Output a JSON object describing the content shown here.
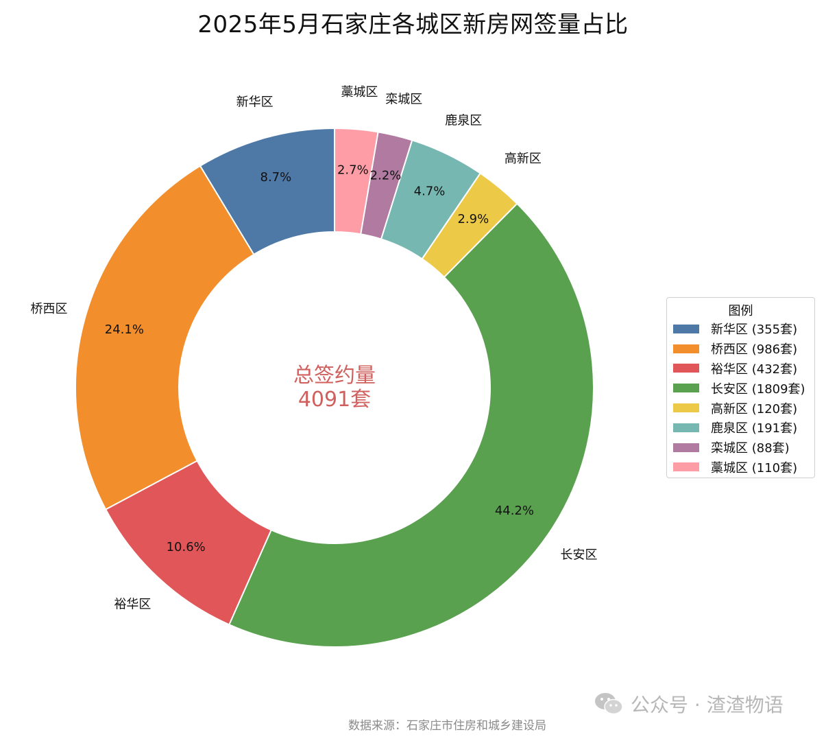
{
  "chart_data": {
    "type": "pie",
    "title": "2025年5月石家庄各城区新房网签量占比",
    "center_label": {
      "line1": "总签约量",
      "line2": "4091套"
    },
    "legend": {
      "title": "图例",
      "position": "right"
    },
    "slices": [
      {
        "name": "新华区",
        "value": 355,
        "percent_label": "8.7%",
        "legend_label": "新华区 (355套)",
        "color": "#4e79a7"
      },
      {
        "name": "桥西区",
        "value": 986,
        "percent_label": "24.1%",
        "legend_label": "桥西区 (986套)",
        "color": "#f28e2b"
      },
      {
        "name": "裕华区",
        "value": 432,
        "percent_label": "10.6%",
        "legend_label": "裕华区 (432套)",
        "color": "#e15759"
      },
      {
        "name": "长安区",
        "value": 1809,
        "percent_label": "44.2%",
        "legend_label": "长安区 (1809套)",
        "color": "#59a14f"
      },
      {
        "name": "高新区",
        "value": 120,
        "percent_label": "2.9%",
        "legend_label": "高新区 (120套)",
        "color": "#edc948"
      },
      {
        "name": "鹿泉区",
        "value": 191,
        "percent_label": "4.7%",
        "legend_label": "鹿泉区 (191套)",
        "color": "#76b7b2"
      },
      {
        "name": "栾城区",
        "value": 88,
        "percent_label": "2.2%",
        "legend_label": "栾城区 (88套)",
        "color": "#b07aa1"
      },
      {
        "name": "藁城区",
        "value": 110,
        "percent_label": "2.7%",
        "legend_label": "藁城区 (110套)",
        "color": "#ff9da7"
      }
    ]
  },
  "footer": {
    "source": "数据来源：石家庄市住房和城乡建设局",
    "watermark": "公众号 · 渣渣物语"
  }
}
